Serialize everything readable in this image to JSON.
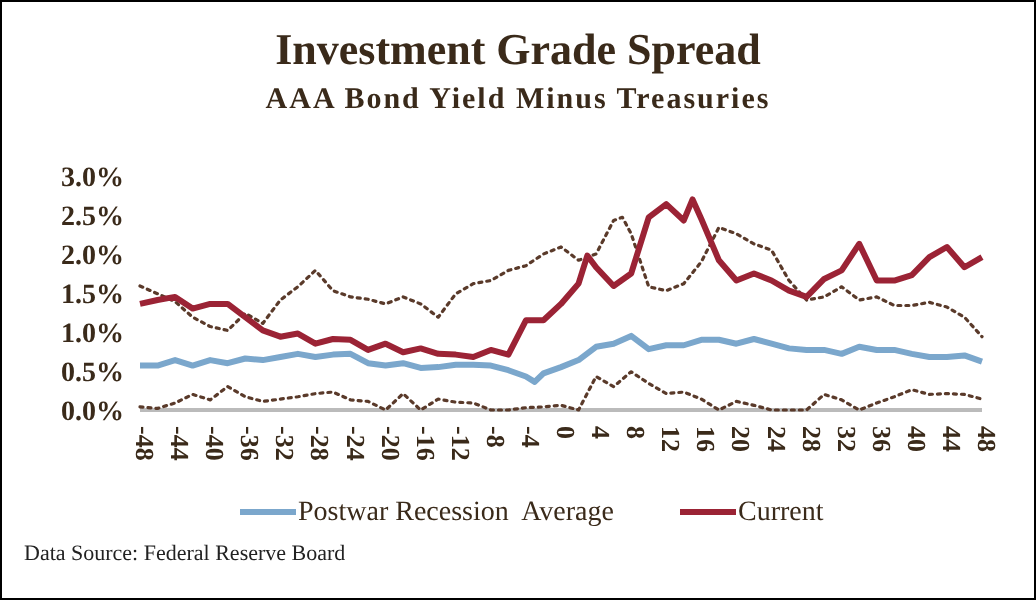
{
  "chart_data": {
    "type": "line",
    "title": "Investment Grade Spread",
    "subtitle": "AAA Bond Yield Minus Treasuries",
    "x": [
      -48,
      -46,
      -44,
      -42,
      -40,
      -38,
      -36,
      -34,
      -32,
      -30,
      -28,
      -26,
      -24,
      -22,
      -20,
      -18,
      -16,
      -14,
      -12,
      -10,
      -8,
      -6,
      -4,
      -2,
      0,
      2,
      4,
      6,
      8,
      10,
      12,
      14,
      16,
      18,
      20,
      22,
      24,
      26,
      28,
      30,
      32,
      34,
      36,
      38,
      40,
      42,
      44,
      46,
      48
    ],
    "xlim": [
      -48,
      48
    ],
    "xticks": [
      -48,
      -44,
      -40,
      -36,
      -32,
      -28,
      -24,
      -20,
      -16,
      -12,
      -8,
      -4,
      0,
      4,
      8,
      12,
      16,
      20,
      24,
      28,
      32,
      36,
      40,
      44,
      48
    ],
    "ylim": [
      0,
      3
    ],
    "yticks": [
      {
        "value": 0,
        "label": "0.0%"
      },
      {
        "value": 0.5,
        "label": "0.5%"
      },
      {
        "value": 1,
        "label": "1.0%"
      },
      {
        "value": 1.5,
        "label": "1.5%"
      },
      {
        "value": 2,
        "label": "2.0%"
      },
      {
        "value": 2.5,
        "label": "2.5%"
      },
      {
        "value": 3,
        "label": "3.0%"
      }
    ],
    "grid": false,
    "legend": "bottom",
    "marker": "none",
    "series": [
      {
        "color": "#5a3a2a",
        "line_style": "dotted",
        "x": [
          -48,
          -46,
          -44,
          -42,
          -40,
          -38,
          -36,
          -34,
          -32,
          -30,
          -28,
          -26,
          -24,
          -22,
          -20,
          -18,
          -16,
          -14,
          -12,
          -10,
          -8,
          -6,
          -4,
          -2,
          0,
          2,
          4,
          6,
          7,
          8,
          10,
          12,
          14,
          16,
          18,
          20,
          22,
          24,
          26,
          28,
          30,
          32,
          34,
          36,
          38,
          40,
          42,
          44,
          46,
          48
        ],
        "values": [
          1.59,
          1.49,
          1.39,
          1.19,
          1.07,
          1.02,
          1.24,
          1.11,
          1.41,
          1.58,
          1.79,
          1.53,
          1.45,
          1.42,
          1.36,
          1.45,
          1.36,
          1.19,
          1.49,
          1.62,
          1.66,
          1.79,
          1.85,
          2.0,
          2.09,
          1.92,
          2.0,
          2.43,
          2.47,
          2.26,
          1.58,
          1.53,
          1.62,
          1.9,
          2.34,
          2.26,
          2.13,
          2.05,
          1.66,
          1.41,
          1.45,
          1.58,
          1.41,
          1.45,
          1.34,
          1.34,
          1.38,
          1.32,
          1.19,
          0.94
        ]
      },
      {
        "color": "#5a3a2a",
        "line_style": "dotted",
        "values": [
          0.04,
          0.02,
          0.09,
          0.2,
          0.13,
          0.3,
          0.17,
          0.11,
          0.14,
          0.17,
          0.21,
          0.23,
          0.13,
          0.11,
          0,
          0.21,
          0,
          0.14,
          0.1,
          0.09,
          0,
          0,
          0.03,
          0.04,
          0.06,
          0,
          0.43,
          0.3,
          0.49,
          0.34,
          0.21,
          0.23,
          0.14,
          0,
          0.11,
          0.06,
          0,
          0,
          0,
          0.2,
          0.13,
          0,
          0.09,
          0.17,
          0.26,
          0.2,
          0.21,
          0.2,
          0.14
        ]
      },
      {
        "name": "Postwar Recession  Average",
        "color": "#7ba7cc",
        "line_style": "solid",
        "x": [
          -48,
          -46,
          -44,
          -42,
          -40,
          -38,
          -36,
          -34,
          -32,
          -30,
          -28,
          -26,
          -24,
          -22,
          -20,
          -18,
          -16,
          -14,
          -12,
          -10,
          -8,
          -6,
          -4,
          -3,
          -2,
          0,
          2,
          4,
          6,
          8,
          10,
          12,
          14,
          16,
          18,
          20,
          22,
          24,
          26,
          28,
          30,
          32,
          34,
          36,
          38,
          40,
          42,
          44,
          46,
          48
        ],
        "values": [
          0.57,
          0.57,
          0.64,
          0.57,
          0.64,
          0.6,
          0.66,
          0.64,
          0.68,
          0.72,
          0.68,
          0.71,
          0.72,
          0.6,
          0.57,
          0.6,
          0.54,
          0.55,
          0.58,
          0.58,
          0.57,
          0.51,
          0.43,
          0.36,
          0.47,
          0.55,
          0.64,
          0.81,
          0.85,
          0.95,
          0.78,
          0.83,
          0.83,
          0.9,
          0.9,
          0.85,
          0.91,
          0.85,
          0.79,
          0.77,
          0.77,
          0.72,
          0.81,
          0.77,
          0.77,
          0.72,
          0.68,
          0.68,
          0.7,
          0.62
        ]
      },
      {
        "name": "Current",
        "color": "#9b2335",
        "line_style": "solid",
        "x": [
          -48,
          -46,
          -44,
          -42,
          -40,
          -38,
          -36,
          -34,
          -32,
          -30,
          -28,
          -26,
          -24,
          -22,
          -20,
          -18,
          -16,
          -14,
          -12,
          -10,
          -8,
          -6,
          -4,
          -2,
          0,
          2,
          3,
          4,
          6,
          8,
          10,
          12,
          14,
          15,
          16,
          18,
          20,
          22,
          24,
          26,
          28,
          30,
          32,
          34,
          36,
          38,
          40,
          42,
          44,
          46,
          48
        ],
        "values": [
          1.36,
          1.41,
          1.45,
          1.3,
          1.36,
          1.36,
          1.19,
          1.02,
          0.94,
          0.98,
          0.85,
          0.91,
          0.9,
          0.77,
          0.85,
          0.74,
          0.79,
          0.72,
          0.71,
          0.68,
          0.77,
          0.71,
          1.15,
          1.15,
          1.36,
          1.62,
          1.98,
          1.83,
          1.59,
          1.75,
          2.47,
          2.64,
          2.43,
          2.7,
          2.45,
          1.92,
          1.66,
          1.75,
          1.66,
          1.53,
          1.45,
          1.68,
          1.79,
          2.13,
          1.66,
          1.66,
          1.73,
          1.96,
          2.09,
          1.83,
          1.96
        ]
      }
    ],
    "annotations": [
      "Data Source: Federal Reserve Board"
    ]
  }
}
